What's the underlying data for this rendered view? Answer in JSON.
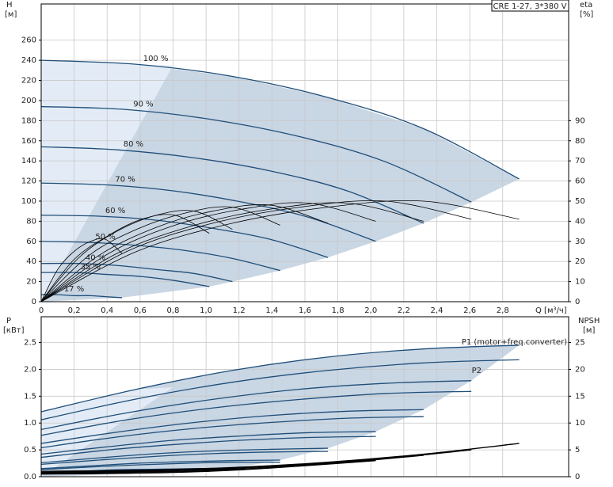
{
  "chart_data": [
    {
      "type": "line",
      "title": "CRE 1-27, 3*380 V",
      "y_label": "H",
      "y_unit": "[м]",
      "y2_label": "eta",
      "y2_unit": "[%]",
      "x_label": "Q [м³/ч]",
      "xlim": [
        0,
        3.2
      ],
      "ylim": [
        0,
        296
      ],
      "y2lim": [
        0,
        148
      ],
      "grid": true,
      "xticks": [
        0,
        {
          "value": 0.2,
          "label": "0,2"
        },
        {
          "value": 0.4,
          "label": "0,4"
        },
        {
          "value": 0.6,
          "label": "0,6"
        },
        {
          "value": 0.8,
          "label": "0,8"
        },
        {
          "value": 1.0,
          "label": "1,0"
        },
        {
          "value": 1.2,
          "label": "1,2"
        },
        {
          "value": 1.4,
          "label": "1,4"
        },
        {
          "value": 1.6,
          "label": "1,6"
        },
        {
          "value": 1.8,
          "label": "1,8"
        },
        {
          "value": 2.0,
          "label": "2,0"
        },
        {
          "value": 2.2,
          "label": "2,2"
        },
        {
          "value": 2.4,
          "label": "2,4"
        },
        {
          "value": 2.6,
          "label": "2,6"
        },
        {
          "value": 2.8,
          "label": "2,8"
        }
      ],
      "yticks": [
        0,
        20,
        40,
        60,
        80,
        100,
        120,
        140,
        160,
        180,
        200,
        220,
        240,
        260
      ],
      "y2ticks": [
        0,
        10,
        20,
        30,
        40,
        50,
        60,
        70,
        80,
        90
      ],
      "series": [
        {
          "name": "100 %",
          "color": "#1f4e79",
          "x": [
            0,
            0.58,
            1.16,
            1.74,
            2.32,
            2.9
          ],
          "values": [
            240,
            236,
            224,
            203,
            172,
            122
          ]
        },
        {
          "name": "90 %",
          "color": "#1f4e79",
          "x": [
            0,
            0.52,
            1.04,
            1.57,
            2.09,
            2.61
          ],
          "values": [
            194,
            191,
            181,
            164,
            139,
            99
          ]
        },
        {
          "name": "80 %",
          "color": "#1f4e79",
          "x": [
            0,
            0.46,
            0.93,
            1.39,
            1.86,
            2.32
          ],
          "values": [
            154,
            151,
            143,
            130,
            110,
            78
          ]
        },
        {
          "name": "70 %",
          "color": "#1f4e79",
          "x": [
            0,
            0.41,
            0.81,
            1.22,
            1.62,
            2.03
          ],
          "values": [
            118,
            116,
            110,
            99,
            84,
            60
          ]
        },
        {
          "name": "60 %",
          "color": "#1f4e79",
          "x": [
            0,
            0.35,
            0.7,
            1.04,
            1.39,
            1.74
          ],
          "values": [
            86,
            85,
            81,
            73,
            62,
            44
          ]
        },
        {
          "name": "50 %",
          "color": "#1f4e79",
          "x": [
            0,
            0.29,
            0.58,
            0.87,
            1.16,
            1.45
          ],
          "values": [
            60,
            59,
            56,
            51,
            43,
            31
          ]
        },
        {
          "name": "40 %",
          "color": "#1f4e79",
          "x": [
            0,
            0.23,
            0.46,
            0.7,
            0.93,
            1.16
          ],
          "values": [
            38,
            38,
            36,
            32,
            28,
            20
          ]
        },
        {
          "name": "35 %",
          "color": "#1f4e79",
          "x": [
            0,
            0.2,
            0.41,
            0.61,
            0.81,
            1.02
          ],
          "values": [
            29,
            29,
            27,
            25,
            21,
            15
          ]
        },
        {
          "name": "17 %",
          "color": "#1f4e79",
          "x": [
            0,
            0.1,
            0.2,
            0.3,
            0.39,
            0.49
          ],
          "values": [
            7,
            7,
            6,
            6,
            5,
            4
          ]
        },
        {
          "color": "#000000",
          "axis": "y2",
          "x": [
            0,
            0.58,
            1.16,
            1.74,
            2.32,
            2.9
          ],
          "values": [
            0,
            25,
            39,
            47,
            50,
            41
          ]
        },
        {
          "color": "#000000",
          "axis": "y2",
          "x": [
            0,
            0.52,
            1.04,
            1.57,
            2.09,
            2.61
          ],
          "values": [
            0,
            25,
            39,
            47,
            50,
            41
          ]
        },
        {
          "color": "#000000",
          "axis": "y2",
          "x": [
            0,
            0.46,
            0.93,
            1.39,
            1.86,
            2.32
          ],
          "values": [
            0,
            24,
            38,
            46,
            49,
            40
          ]
        },
        {
          "color": "#000000",
          "axis": "y2",
          "x": [
            0,
            0.41,
            0.81,
            1.22,
            1.62,
            2.03
          ],
          "values": [
            0,
            24,
            38,
            46,
            49,
            40
          ]
        },
        {
          "color": "#000000",
          "axis": "y2",
          "x": [
            0,
            0.35,
            0.7,
            1.04,
            1.39,
            1.74
          ],
          "values": [
            0,
            23,
            37,
            45,
            48,
            39
          ]
        },
        {
          "color": "#000000",
          "axis": "y2",
          "x": [
            0,
            0.29,
            0.58,
            0.87,
            1.16,
            1.45
          ],
          "values": [
            0,
            23,
            36,
            44,
            47,
            38
          ]
        },
        {
          "color": "#000000",
          "axis": "y2",
          "x": [
            0,
            0.23,
            0.46,
            0.7,
            0.93,
            1.16
          ],
          "values": [
            0,
            22,
            35,
            43,
            45,
            36
          ]
        },
        {
          "color": "#000000",
          "axis": "y2",
          "x": [
            0,
            0.2,
            0.41,
            0.61,
            0.81,
            1.02
          ],
          "values": [
            0,
            21,
            33,
            41,
            43,
            34
          ]
        },
        {
          "color": "#000000",
          "axis": "y2",
          "x": [
            0,
            0.1,
            0.2,
            0.3,
            0.39,
            0.49
          ],
          "values": [
            0,
            16,
            25,
            30,
            31,
            24
          ]
        }
      ]
    },
    {
      "type": "line",
      "y_label": "P",
      "y_unit": "[кВт]",
      "y2_label": "NPSH",
      "y2_unit": "[м]",
      "xlim": [
        0,
        3.2
      ],
      "ylim": [
        0,
        2.98
      ],
      "y2lim": [
        0,
        29.8
      ],
      "grid": true,
      "xticks": [
        0,
        0.2,
        0.4,
        0.6,
        0.8,
        1.0,
        1.2,
        1.4,
        1.6,
        1.8,
        2.0,
        2.2,
        2.4,
        2.6,
        2.8
      ],
      "yticks": [
        {
          "value": 0,
          "label": "0.0"
        },
        0.5,
        {
          "value": 1,
          "label": "1.0"
        },
        1.5,
        {
          "value": 2,
          "label": "2.0"
        },
        2.5
      ],
      "y2ticks": [
        0,
        5,
        10,
        15,
        20,
        25
      ],
      "series": [
        {
          "name": "P1 (motor+freq.converter)",
          "color": "#1f4e79",
          "x": [
            0,
            0.58,
            1.16,
            1.74,
            2.32,
            2.9
          ],
          "values": [
            1.21,
            1.63,
            1.98,
            2.23,
            2.38,
            2.45
          ]
        },
        {
          "name": "P2",
          "color": "#1f4e79",
          "x": [
            0,
            0.58,
            1.16,
            1.74,
            2.32,
            2.9
          ],
          "values": [
            1.06,
            1.45,
            1.76,
            1.98,
            2.12,
            2.18
          ]
        },
        {
          "color": "#1f4e79",
          "x": [
            0,
            0.52,
            1.04,
            1.57,
            2.09,
            2.61
          ],
          "values": [
            0.88,
            1.19,
            1.44,
            1.63,
            1.74,
            1.79
          ]
        },
        {
          "color": "#1f4e79",
          "x": [
            0,
            0.52,
            1.04,
            1.57,
            2.09,
            2.61
          ],
          "values": [
            0.77,
            1.06,
            1.28,
            1.44,
            1.55,
            1.59
          ]
        },
        {
          "color": "#1f4e79",
          "x": [
            0,
            0.46,
            0.93,
            1.39,
            1.86,
            2.32
          ],
          "values": [
            0.62,
            0.83,
            1.01,
            1.14,
            1.22,
            1.25
          ]
        },
        {
          "color": "#1f4e79",
          "x": [
            0,
            0.46,
            0.93,
            1.39,
            1.86,
            2.32
          ],
          "values": [
            0.54,
            0.74,
            0.9,
            1.01,
            1.09,
            1.12
          ]
        },
        {
          "color": "#1f4e79",
          "x": [
            0,
            0.41,
            0.81,
            1.22,
            1.62,
            2.03
          ],
          "values": [
            0.42,
            0.56,
            0.68,
            0.76,
            0.82,
            0.84
          ]
        },
        {
          "color": "#1f4e79",
          "x": [
            0,
            0.41,
            0.81,
            1.22,
            1.62,
            2.03
          ],
          "values": [
            0.36,
            0.5,
            0.6,
            0.68,
            0.73,
            0.75
          ]
        },
        {
          "color": "#1f4e79",
          "x": [
            0,
            0.35,
            0.7,
            1.04,
            1.39,
            1.74
          ],
          "values": [
            0.26,
            0.35,
            0.43,
            0.48,
            0.51,
            0.53
          ]
        },
        {
          "color": "#1f4e79",
          "x": [
            0,
            0.35,
            0.7,
            1.04,
            1.39,
            1.74
          ],
          "values": [
            0.23,
            0.31,
            0.38,
            0.43,
            0.46,
            0.47
          ]
        },
        {
          "color": "#1f4e79",
          "x": [
            0,
            0.29,
            0.58,
            0.87,
            1.16,
            1.45
          ],
          "values": [
            0.15,
            0.2,
            0.25,
            0.28,
            0.3,
            0.31
          ]
        },
        {
          "color": "#1f4e79",
          "x": [
            0,
            0.29,
            0.58,
            0.87,
            1.16,
            1.45
          ],
          "values": [
            0.13,
            0.18,
            0.22,
            0.25,
            0.27,
            0.27
          ]
        },
        {
          "color": "#1f4e79",
          "x": [
            0,
            0.23,
            0.46,
            0.7,
            0.93,
            1.16
          ],
          "values": [
            0.08,
            0.1,
            0.13,
            0.14,
            0.15,
            0.16
          ]
        },
        {
          "color": "#1f4e79",
          "x": [
            0,
            0.23,
            0.46,
            0.7,
            0.93,
            1.16
          ],
          "values": [
            0.07,
            0.09,
            0.11,
            0.13,
            0.14,
            0.14
          ]
        },
        {
          "color": "#1f4e79",
          "x": [
            0,
            0.2,
            0.41,
            0.61,
            0.81,
            1.02
          ],
          "values": [
            0.05,
            0.07,
            0.09,
            0.1,
            0.1,
            0.11
          ]
        },
        {
          "color": "#1f4e79",
          "x": [
            0,
            0.2,
            0.41,
            0.61,
            0.81,
            1.02
          ],
          "values": [
            0.05,
            0.06,
            0.08,
            0.09,
            0.09,
            0.1
          ]
        },
        {
          "color": "#000000",
          "axis": "y2",
          "x": [
            0,
            0.58,
            1.16,
            1.74,
            2.32,
            2.9
          ],
          "values": [
            1.0,
            1.2,
            1.7,
            2.7,
            4.2,
            6.2
          ]
        },
        {
          "color": "#000000",
          "axis": "y2",
          "x": [
            0,
            0.52,
            1.04,
            1.57,
            2.09,
            2.61
          ],
          "values": [
            0.8,
            1.0,
            1.4,
            2.2,
            3.4,
            5.0
          ]
        },
        {
          "color": "#000000",
          "axis": "y2",
          "x": [
            0,
            0.46,
            0.93,
            1.39,
            1.86,
            2.32
          ],
          "values": [
            0.6,
            0.8,
            1.1,
            1.7,
            2.7,
            4.0
          ]
        },
        {
          "color": "#000000",
          "axis": "y2",
          "x": [
            0,
            0.41,
            0.81,
            1.22,
            1.62,
            2.03
          ],
          "values": [
            0.5,
            0.6,
            0.8,
            1.3,
            2.1,
            3.0
          ]
        }
      ]
    }
  ]
}
